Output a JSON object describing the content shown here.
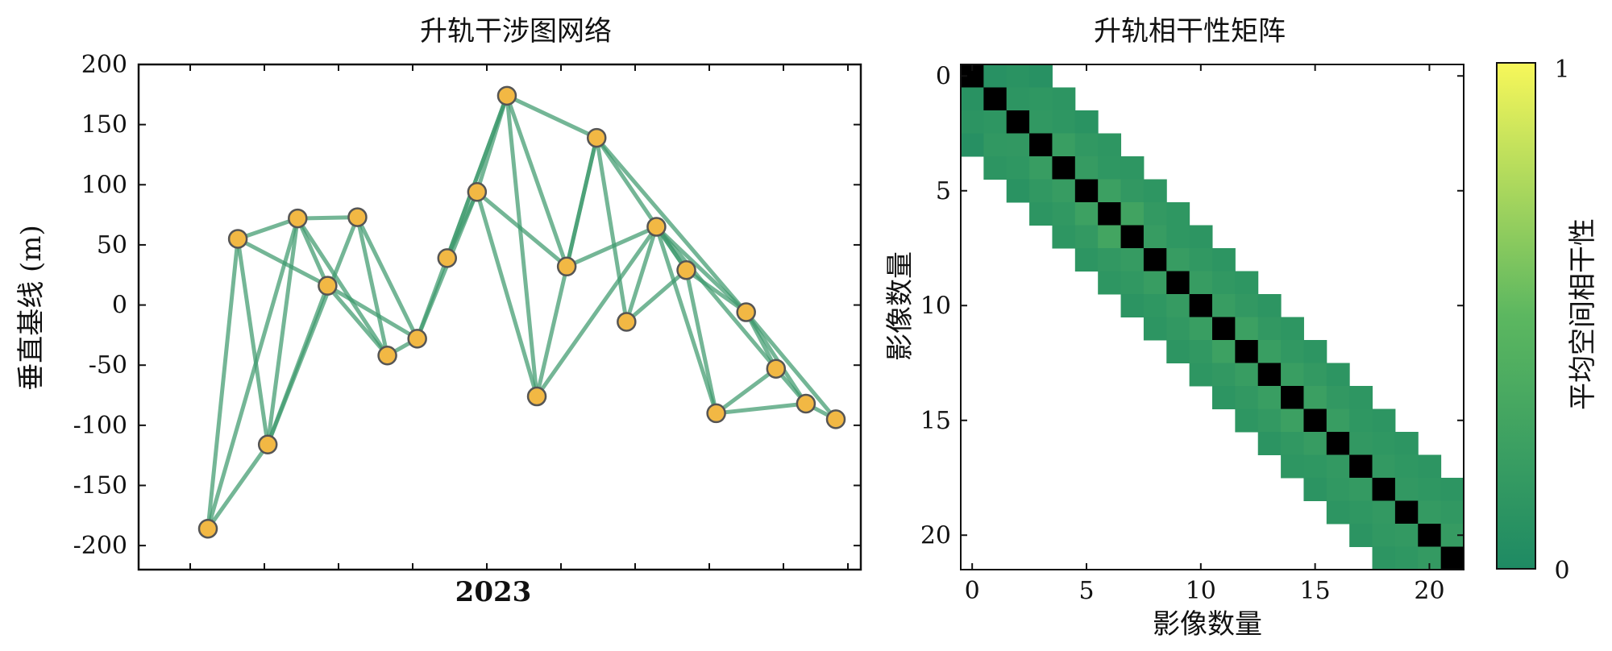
{
  "chart_data": [
    {
      "type": "scatter",
      "title": "升轨干涉图网络",
      "xlabel": "2023",
      "ylabel": "垂直基线 (m)",
      "ylim": [
        -220,
        200
      ],
      "yticks": [
        200,
        150,
        100,
        50,
        0,
        -50,
        -100,
        -150,
        -200
      ],
      "grid": false,
      "marker_color": "#f2b844",
      "edge_color": "#3f9a6d",
      "x": [
        1,
        2,
        3,
        4,
        5,
        6,
        7,
        8,
        9,
        10,
        11,
        12,
        13,
        14,
        15,
        16,
        17,
        18,
        19,
        20,
        21,
        22
      ],
      "y": [
        -186,
        55,
        -116,
        72,
        16,
        73,
        -42,
        -28,
        39,
        94,
        174,
        -76,
        32,
        139,
        -14,
        65,
        29,
        -90,
        -6,
        -53,
        -82,
        -95
      ],
      "edges": [
        [
          0,
          1
        ],
        [
          0,
          2
        ],
        [
          0,
          3
        ],
        [
          1,
          2
        ],
        [
          1,
          3
        ],
        [
          1,
          4
        ],
        [
          2,
          3
        ],
        [
          2,
          4
        ],
        [
          2,
          5
        ],
        [
          3,
          4
        ],
        [
          3,
          5
        ],
        [
          3,
          6
        ],
        [
          4,
          6
        ],
        [
          4,
          7
        ],
        [
          5,
          6
        ],
        [
          5,
          7
        ],
        [
          6,
          7
        ],
        [
          7,
          9
        ],
        [
          7,
          10
        ],
        [
          8,
          9
        ],
        [
          8,
          10
        ],
        [
          9,
          10
        ],
        [
          9,
          11
        ],
        [
          9,
          12
        ],
        [
          10,
          11
        ],
        [
          10,
          12
        ],
        [
          10,
          13
        ],
        [
          11,
          13
        ],
        [
          11,
          15
        ],
        [
          12,
          13
        ],
        [
          12,
          15
        ],
        [
          13,
          14
        ],
        [
          13,
          16
        ],
        [
          13,
          18
        ],
        [
          14,
          15
        ],
        [
          14,
          16
        ],
        [
          15,
          16
        ],
        [
          15,
          17
        ],
        [
          15,
          18
        ],
        [
          15,
          19
        ],
        [
          16,
          17
        ],
        [
          16,
          18
        ],
        [
          17,
          19
        ],
        [
          17,
          20
        ],
        [
          18,
          19
        ],
        [
          18,
          20
        ],
        [
          18,
          21
        ],
        [
          19,
          20
        ],
        [
          20,
          21
        ]
      ]
    },
    {
      "type": "heatmap",
      "title": "升轨相干性矩阵",
      "xlabel": "影像数量",
      "ylabel": "影像数量",
      "size": 22,
      "xticks": [
        0,
        5,
        10,
        15,
        20
      ],
      "yticks": [
        0,
        5,
        10,
        15,
        20
      ],
      "bandwidth": 3,
      "diagonal_color": "#000000",
      "colorbar": {
        "label": "平均空间相干性",
        "min": 0,
        "max": 1,
        "min_label": "0",
        "max_label": "1",
        "low_color": "#1e8a63",
        "high_color": "#f7f75a"
      },
      "rows": [
        [
          null,
          0.08,
          0.1,
          0.08
        ],
        [
          0.09,
          null,
          0.12,
          0.14,
          0.12
        ],
        [
          0.11,
          0.13,
          null,
          0.15,
          0.13,
          0.1
        ],
        [
          0.07,
          0.15,
          0.16,
          null,
          0.22,
          0.15,
          0.13
        ],
        [
          null,
          0.12,
          0.14,
          0.21,
          null,
          0.19,
          0.14,
          0.13
        ],
        [
          null,
          null,
          0.1,
          0.15,
          0.2,
          null,
          0.24,
          0.16,
          0.13
        ],
        [
          null,
          null,
          null,
          0.12,
          0.15,
          0.25,
          null,
          0.28,
          0.17,
          0.14
        ],
        [
          null,
          null,
          null,
          null,
          0.13,
          0.17,
          0.3,
          null,
          0.2,
          0.14,
          0.12
        ],
        [
          null,
          null,
          null,
          null,
          null,
          0.12,
          0.16,
          0.19,
          null,
          0.2,
          0.15,
          0.12
        ],
        [
          null,
          null,
          null,
          null,
          null,
          null,
          0.13,
          0.15,
          0.21,
          null,
          0.2,
          0.15,
          0.13
        ],
        [
          null,
          null,
          null,
          null,
          null,
          null,
          null,
          0.11,
          0.14,
          0.19,
          null,
          0.21,
          0.16,
          0.12
        ],
        [
          null,
          null,
          null,
          null,
          null,
          null,
          null,
          null,
          0.12,
          0.16,
          0.22,
          null,
          0.24,
          0.16,
          0.13
        ],
        [
          null,
          null,
          null,
          null,
          null,
          null,
          null,
          null,
          null,
          0.12,
          0.15,
          0.25,
          null,
          0.22,
          0.15,
          0.12
        ],
        [
          null,
          null,
          null,
          null,
          null,
          null,
          null,
          null,
          null,
          null,
          0.13,
          0.16,
          0.21,
          null,
          0.22,
          0.17,
          0.12
        ],
        [
          null,
          null,
          null,
          null,
          null,
          null,
          null,
          null,
          null,
          null,
          null,
          0.12,
          0.16,
          0.22,
          null,
          0.23,
          0.16,
          0.13
        ],
        [
          null,
          null,
          null,
          null,
          null,
          null,
          null,
          null,
          null,
          null,
          null,
          null,
          0.13,
          0.17,
          0.24,
          null,
          0.21,
          0.14,
          0.12
        ],
        [
          null,
          null,
          null,
          null,
          null,
          null,
          null,
          null,
          null,
          null,
          null,
          null,
          null,
          0.11,
          0.15,
          0.2,
          null,
          0.16,
          0.14,
          0.12
        ],
        [
          null,
          null,
          null,
          null,
          null,
          null,
          null,
          null,
          null,
          null,
          null,
          null,
          null,
          null,
          0.13,
          0.14,
          0.17,
          null,
          0.17,
          0.14,
          0.12
        ],
        [
          null,
          null,
          null,
          null,
          null,
          null,
          null,
          null,
          null,
          null,
          null,
          null,
          null,
          null,
          null,
          0.11,
          0.15,
          0.18,
          null,
          0.16,
          0.14,
          0.12
        ],
        [
          null,
          null,
          null,
          null,
          null,
          null,
          null,
          null,
          null,
          null,
          null,
          null,
          null,
          null,
          null,
          null,
          0.12,
          0.14,
          0.17,
          null,
          0.18,
          0.15
        ],
        [
          null,
          null,
          null,
          null,
          null,
          null,
          null,
          null,
          null,
          null,
          null,
          null,
          null,
          null,
          null,
          null,
          null,
          0.11,
          0.15,
          0.17,
          null,
          0.19
        ],
        [
          null,
          null,
          null,
          null,
          null,
          null,
          null,
          null,
          null,
          null,
          null,
          null,
          null,
          null,
          null,
          null,
          null,
          null,
          0.12,
          0.14,
          0.18,
          null
        ]
      ]
    }
  ]
}
